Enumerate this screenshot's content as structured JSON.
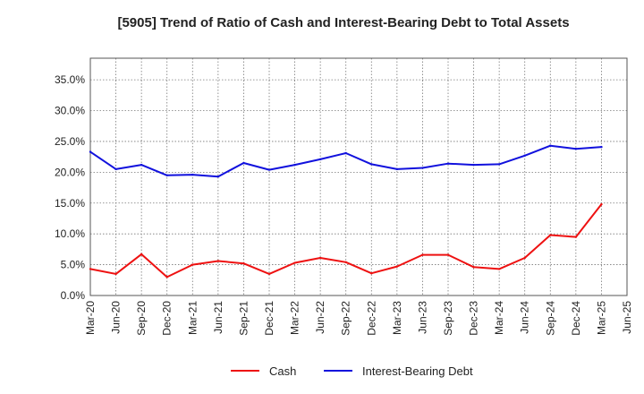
{
  "chart_data": {
    "type": "line",
    "title": "[5905]  Trend of Ratio of Cash and Interest-Bearing Debt to Total Assets",
    "xlabel": "",
    "ylabel": "",
    "ylim": [
      0,
      0.385
    ],
    "y_ticks": [
      "0.0%",
      "5.0%",
      "10.0%",
      "15.0%",
      "20.0%",
      "25.0%",
      "30.0%",
      "35.0%"
    ],
    "y_tick_values": [
      0,
      0.05,
      0.1,
      0.15,
      0.2,
      0.25,
      0.3,
      0.35
    ],
    "categories": [
      "Mar-20",
      "Jun-20",
      "Sep-20",
      "Dec-20",
      "Mar-21",
      "Jun-21",
      "Sep-21",
      "Dec-21",
      "Mar-22",
      "Jun-22",
      "Sep-22",
      "Dec-22",
      "Mar-23",
      "Jun-23",
      "Sep-23",
      "Dec-23",
      "Mar-24",
      "Jun-24",
      "Sep-24",
      "Dec-24",
      "Mar-25",
      "Jun-25"
    ],
    "grid": true,
    "legend_position": "bottom",
    "series": [
      {
        "name": "Cash",
        "color": "#ee1111",
        "values": [
          0.043,
          0.035,
          0.067,
          0.03,
          0.05,
          0.056,
          0.052,
          0.035,
          0.053,
          0.061,
          0.054,
          0.036,
          0.047,
          0.066,
          0.066,
          0.046,
          0.043,
          0.061,
          0.098,
          0.095,
          0.148,
          null
        ]
      },
      {
        "name": "Interest-Bearing Debt",
        "color": "#1111dd",
        "values": [
          0.233,
          0.205,
          0.212,
          0.195,
          0.196,
          0.193,
          0.215,
          0.204,
          0.212,
          0.221,
          0.231,
          0.213,
          0.205,
          0.207,
          0.214,
          0.212,
          0.213,
          0.227,
          0.243,
          0.238,
          0.241,
          null
        ]
      }
    ]
  }
}
